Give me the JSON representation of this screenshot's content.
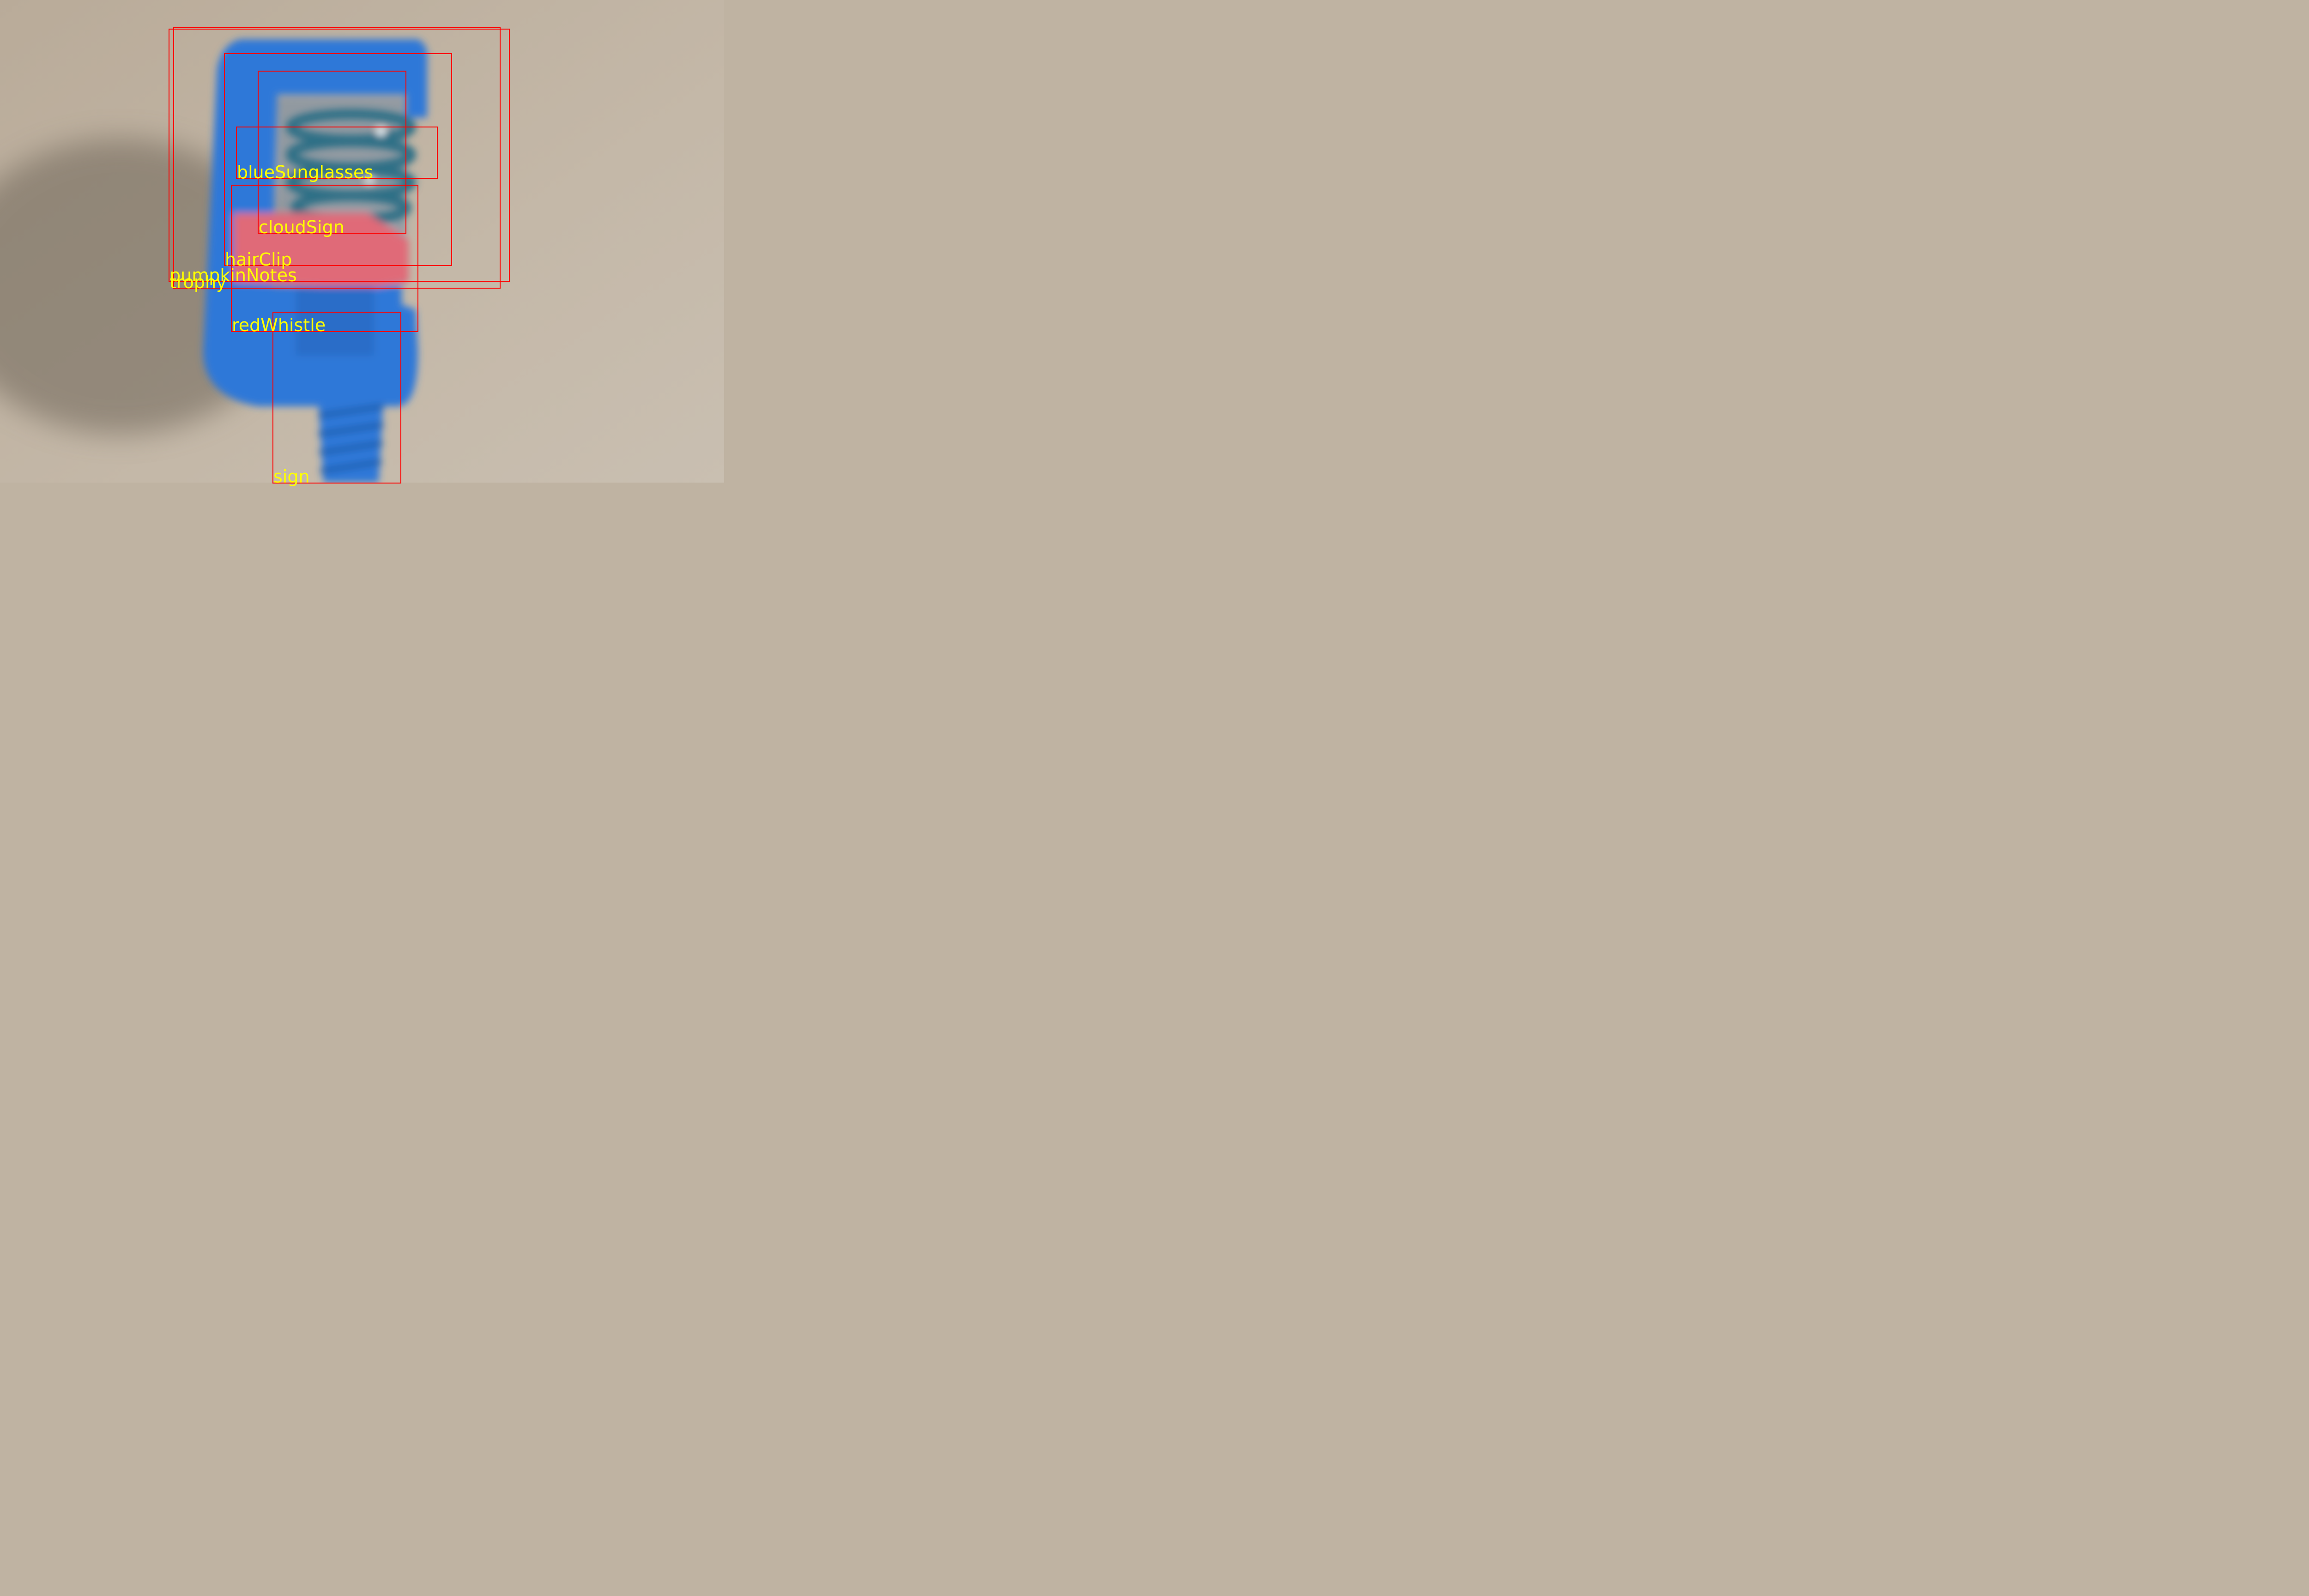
{
  "image": {
    "description_colors": {
      "background": "#bfb3a2",
      "clamp": "#2d78d8",
      "pad": "#e06a78",
      "spring": "#2f6f86",
      "box": "#ff0000",
      "label": "#ffff00"
    }
  },
  "detections": [
    {
      "label": "trophy"
    },
    {
      "label": "pumpkinNotes"
    },
    {
      "label": "hairClip"
    },
    {
      "label": "cloudSign"
    },
    {
      "label": "blueSunglasses"
    },
    {
      "label": "redWhistle"
    },
    {
      "label": "sign"
    }
  ]
}
